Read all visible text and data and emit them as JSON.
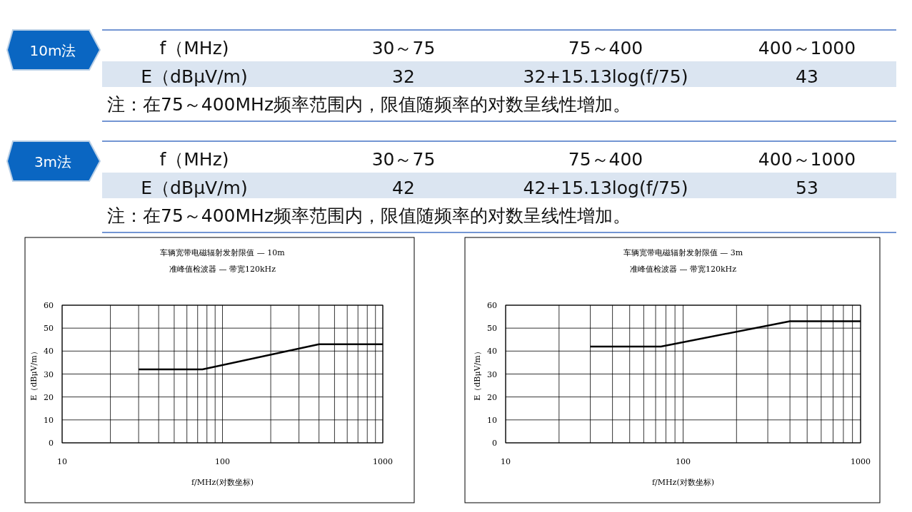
{
  "chart_data": [
    {
      "type": "other",
      "title": "10m法",
      "annotations": [
        "f（MHz)",
        "30～75",
        "75～400",
        "400～1000",
        "E（dBμV/m)",
        "32",
        "32+15.13log(f/75)",
        "43",
        "注：在75～400MHz频率范围内，限值随频率的对数呈线性增加。"
      ]
    },
    {
      "type": "other",
      "title": "3m法",
      "annotations": [
        "f（MHz)",
        "30～75",
        "75～400",
        "400～1000",
        "E（dBμV/m)",
        "42",
        "42+15.13log(f/75)",
        "53",
        "注：在75～400MHz频率范围内，限值随频率的对数呈线性增加。"
      ]
    },
    {
      "type": "line",
      "title": "车辆宽带电磁辐射发射限值 — 10m",
      "subtitle": "准峰值检波器 — 带宽120kHz",
      "xlabel": "f/MHz(对数坐标)",
      "ylabel": "E（dBμV/m）",
      "log": "x",
      "grid": true,
      "color": "#000000",
      "x": [
        30,
        75,
        400,
        1000
      ],
      "values": [
        32,
        32,
        43,
        43
      ],
      "xlim": [
        10,
        1000
      ],
      "ylim": [
        0,
        60
      ],
      "xticks": [
        10,
        {
          "value": 20,
          "label": null
        },
        {
          "value": 30,
          "label": null
        },
        {
          "value": 40,
          "label": null
        },
        {
          "value": 50,
          "label": null
        },
        {
          "value": 60,
          "label": null
        },
        {
          "value": 70,
          "label": null
        },
        {
          "value": 80,
          "label": null
        },
        {
          "value": 90,
          "label": null
        },
        100,
        {
          "value": 200,
          "label": null
        },
        {
          "value": 300,
          "label": null
        },
        {
          "value": 400,
          "label": null
        },
        {
          "value": 500,
          "label": null
        },
        {
          "value": 600,
          "label": null
        },
        {
          "value": 700,
          "label": null
        },
        {
          "value": 800,
          "label": null
        },
        {
          "value": 900,
          "label": null
        },
        1000
      ],
      "yticks": [
        0,
        10,
        20,
        30,
        40,
        50,
        60
      ]
    },
    {
      "type": "line",
      "title": "车辆宽带电磁辐射发射限值 — 3m",
      "subtitle": "准峰值检波器 — 带宽120kHz",
      "xlabel": "f/MHz(对数坐标)",
      "ylabel": "E（dBμV/m）",
      "log": "x",
      "grid": true,
      "color": "#000000",
      "x": [
        30,
        75,
        400,
        1000
      ],
      "values": [
        42,
        42,
        53,
        53
      ],
      "xlim": [
        10,
        1000
      ],
      "ylim": [
        0,
        60
      ],
      "xticks": [
        10,
        {
          "value": 20,
          "label": null
        },
        {
          "value": 30,
          "label": null
        },
        {
          "value": 40,
          "label": null
        },
        {
          "value": 50,
          "label": null
        },
        {
          "value": 60,
          "label": null
        },
        {
          "value": 70,
          "label": null
        },
        {
          "value": 80,
          "label": null
        },
        {
          "value": 90,
          "label": null
        },
        100,
        {
          "value": 200,
          "label": null
        },
        {
          "value": 300,
          "label": null
        },
        {
          "value": 400,
          "label": null
        },
        {
          "value": 500,
          "label": null
        },
        {
          "value": 600,
          "label": null
        },
        {
          "value": 700,
          "label": null
        },
        {
          "value": 800,
          "label": null
        },
        {
          "value": 900,
          "label": null
        },
        1000
      ],
      "yticks": [
        0,
        10,
        20,
        30,
        40,
        50,
        60
      ]
    }
  ]
}
